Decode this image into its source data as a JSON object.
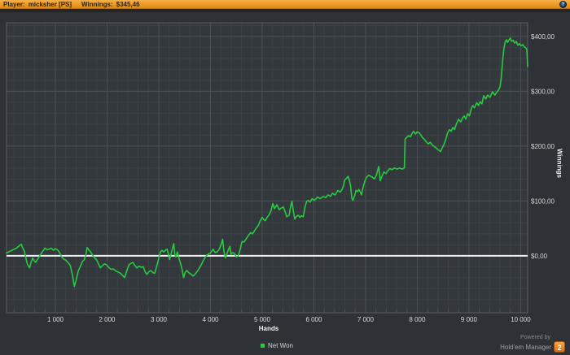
{
  "title_bar": {
    "player_label": "Player:",
    "player_name": "micksher [PS]",
    "winnings_label": "Winnings:",
    "winnings_value": "$345,46",
    "help_icon_glyph": "?"
  },
  "footer": {
    "powered_by": "Powered by",
    "brand": "Hold'em Manager",
    "brand_badge": "2"
  },
  "colors": {
    "titlebar_orange": "#eea62f",
    "outer_bg": "#2e3236",
    "plot_bg": "#33383c",
    "minor_grid": "#3c4146",
    "major_grid": "#4b5156",
    "plot_border": "#565c61",
    "zero_line": "#f2f2f2",
    "net_won_green": "#27cb40",
    "tick_text": "#d6d9db",
    "badge_orange": "#e8821e"
  },
  "chart_data": {
    "type": "line",
    "title": "",
    "xlabel": "Hands",
    "ylabel": "Winnings",
    "grid": true,
    "legend_position": "bottom-center",
    "xlim": [
      55,
      10135
    ],
    "ylim": [
      -104,
      425
    ],
    "x_major_step": 1000,
    "x_minor_step": 200,
    "y_major_step": 100,
    "y_minor_step": 20,
    "zero_line_value": 0,
    "x_ticks": [
      {
        "hands": 1000,
        "label": "1 000"
      },
      {
        "hands": 2000,
        "label": "2 000"
      },
      {
        "hands": 3000,
        "label": "3 000"
      },
      {
        "hands": 4000,
        "label": "4 000"
      },
      {
        "hands": 5000,
        "label": "5 000"
      },
      {
        "hands": 6000,
        "label": "6 000"
      },
      {
        "hands": 7000,
        "label": "7 000"
      },
      {
        "hands": 8000,
        "label": "8 000"
      },
      {
        "hands": 9000,
        "label": "9 000"
      },
      {
        "hands": 10000,
        "label": "10 000"
      }
    ],
    "y_ticks": [
      {
        "value": 400,
        "label": "$400,00"
      },
      {
        "value": 300,
        "label": "$300,00"
      },
      {
        "value": 200,
        "label": "$200,00"
      },
      {
        "value": 100,
        "label": "$100,00"
      },
      {
        "value": 0,
        "label": "$0,00"
      }
    ],
    "series": [
      {
        "name": "Net Won",
        "color": "#27cb40",
        "points": [
          [
            55,
            5
          ],
          [
            120,
            8
          ],
          [
            180,
            11
          ],
          [
            250,
            14
          ],
          [
            310,
            19
          ],
          [
            340,
            21
          ],
          [
            370,
            14
          ],
          [
            400,
            8
          ],
          [
            430,
            -4
          ],
          [
            460,
            -16
          ],
          [
            500,
            -22
          ],
          [
            530,
            -12
          ],
          [
            560,
            -4
          ],
          [
            590,
            -9
          ],
          [
            620,
            -12
          ],
          [
            650,
            -7
          ],
          [
            680,
            -3
          ],
          [
            720,
            3
          ],
          [
            760,
            9
          ],
          [
            800,
            14
          ],
          [
            840,
            11
          ],
          [
            880,
            12
          ],
          [
            920,
            14
          ],
          [
            960,
            10
          ],
          [
            1000,
            13
          ],
          [
            1050,
            10
          ],
          [
            1090,
            4
          ],
          [
            1120,
            -2
          ],
          [
            1160,
            -6
          ],
          [
            1200,
            -8
          ],
          [
            1250,
            -13
          ],
          [
            1290,
            -18
          ],
          [
            1330,
            -35
          ],
          [
            1365,
            -56
          ],
          [
            1400,
            -45
          ],
          [
            1445,
            -27
          ],
          [
            1480,
            -20
          ],
          [
            1520,
            -11
          ],
          [
            1560,
            -7
          ],
          [
            1590,
            2
          ],
          [
            1614,
            15
          ],
          [
            1650,
            10
          ],
          [
            1680,
            7
          ],
          [
            1720,
            1
          ],
          [
            1760,
            -4
          ],
          [
            1800,
            -8
          ],
          [
            1840,
            -16
          ],
          [
            1870,
            -22
          ],
          [
            1910,
            -18
          ],
          [
            1950,
            -15
          ],
          [
            1995,
            -17
          ],
          [
            2040,
            -22
          ],
          [
            2080,
            -25
          ],
          [
            2120,
            -24
          ],
          [
            2170,
            -28
          ],
          [
            2220,
            -30
          ],
          [
            2260,
            -32
          ],
          [
            2300,
            -36
          ],
          [
            2340,
            -40
          ],
          [
            2380,
            -28
          ],
          [
            2420,
            -17
          ],
          [
            2460,
            -14
          ],
          [
            2500,
            -12
          ],
          [
            2540,
            -18
          ],
          [
            2575,
            -22
          ],
          [
            2620,
            -19
          ],
          [
            2660,
            -21
          ],
          [
            2700,
            -20
          ],
          [
            2740,
            -30
          ],
          [
            2770,
            -34
          ],
          [
            2810,
            -29
          ],
          [
            2845,
            -27
          ],
          [
            2890,
            -31
          ],
          [
            2920,
            -32
          ],
          [
            2960,
            -20
          ],
          [
            3000,
            -4
          ],
          [
            3030,
            6
          ],
          [
            3060,
            10
          ],
          [
            3095,
            7
          ],
          [
            3130,
            10
          ],
          [
            3160,
            12
          ],
          [
            3190,
            2
          ],
          [
            3210,
            -7
          ],
          [
            3240,
            4
          ],
          [
            3270,
            15
          ],
          [
            3290,
            22
          ],
          [
            3310,
            2
          ],
          [
            3330,
            -2
          ],
          [
            3360,
            7
          ],
          [
            3390,
            -4
          ],
          [
            3420,
            -14
          ],
          [
            3450,
            -25
          ],
          [
            3480,
            -40
          ],
          [
            3510,
            -30
          ],
          [
            3545,
            -27
          ],
          [
            3580,
            -31
          ],
          [
            3630,
            -34
          ],
          [
            3665,
            -37
          ],
          [
            3700,
            -34
          ],
          [
            3740,
            -29
          ],
          [
            3775,
            -24
          ],
          [
            3820,
            -17
          ],
          [
            3865,
            -8
          ],
          [
            3910,
            -1
          ],
          [
            3955,
            3
          ],
          [
            4000,
            5
          ],
          [
            4050,
            12
          ],
          [
            4090,
            6
          ],
          [
            4130,
            7
          ],
          [
            4170,
            12
          ],
          [
            4215,
            23
          ],
          [
            4235,
            30
          ],
          [
            4260,
            8
          ],
          [
            4290,
            -4
          ],
          [
            4320,
            4
          ],
          [
            4350,
            12
          ],
          [
            4375,
            17
          ],
          [
            4395,
            3
          ],
          [
            4430,
            6
          ],
          [
            4465,
            4
          ],
          [
            4500,
            -2
          ],
          [
            4540,
            0
          ],
          [
            4575,
            12
          ],
          [
            4610,
            26
          ],
          [
            4650,
            25
          ],
          [
            4700,
            32
          ],
          [
            4740,
            38
          ],
          [
            4775,
            42
          ],
          [
            4815,
            40
          ],
          [
            4860,
            47
          ],
          [
            4900,
            52
          ],
          [
            4930,
            56
          ],
          [
            4960,
            63
          ],
          [
            5000,
            70
          ],
          [
            5030,
            66
          ],
          [
            5060,
            64
          ],
          [
            5095,
            70
          ],
          [
            5130,
            74
          ],
          [
            5170,
            82
          ],
          [
            5205,
            95
          ],
          [
            5240,
            86
          ],
          [
            5285,
            93
          ],
          [
            5330,
            84
          ],
          [
            5370,
            87
          ],
          [
            5410,
            89
          ],
          [
            5445,
            80
          ],
          [
            5475,
            71
          ],
          [
            5520,
            74
          ],
          [
            5555,
            92
          ],
          [
            5575,
            99
          ],
          [
            5605,
            80
          ],
          [
            5630,
            67
          ],
          [
            5665,
            72
          ],
          [
            5700,
            74
          ],
          [
            5730,
            70
          ],
          [
            5760,
            73
          ],
          [
            5795,
            71
          ],
          [
            5830,
            90
          ],
          [
            5860,
            99
          ],
          [
            5890,
            101
          ],
          [
            5930,
            98
          ],
          [
            5965,
            104
          ],
          [
            6010,
            101
          ],
          [
            6070,
            107
          ],
          [
            6120,
            104
          ],
          [
            6180,
            108
          ],
          [
            6230,
            106
          ],
          [
            6275,
            111
          ],
          [
            6320,
            108
          ],
          [
            6360,
            114
          ],
          [
            6410,
            111
          ],
          [
            6465,
            119
          ],
          [
            6510,
            116
          ],
          [
            6545,
            121
          ],
          [
            6575,
            129
          ],
          [
            6595,
            138
          ],
          [
            6630,
            141
          ],
          [
            6660,
            145
          ],
          [
            6685,
            138
          ],
          [
            6710,
            128
          ],
          [
            6735,
            105
          ],
          [
            6755,
            101
          ],
          [
            6790,
            110
          ],
          [
            6815,
            119
          ],
          [
            6845,
            117
          ],
          [
            6870,
            121
          ],
          [
            6900,
            115
          ],
          [
            6920,
            111
          ],
          [
            6950,
            124
          ],
          [
            6985,
            136
          ],
          [
            7020,
            143
          ],
          [
            7060,
            147
          ],
          [
            7100,
            145
          ],
          [
            7135,
            143
          ],
          [
            7170,
            140
          ],
          [
            7210,
            147
          ],
          [
            7255,
            163
          ],
          [
            7285,
            137
          ],
          [
            7320,
            146
          ],
          [
            7355,
            153
          ],
          [
            7395,
            150
          ],
          [
            7430,
            155
          ],
          [
            7465,
            159
          ],
          [
            7510,
            157
          ],
          [
            7560,
            160
          ],
          [
            7610,
            158
          ],
          [
            7660,
            160
          ],
          [
            7705,
            158
          ],
          [
            7750,
            160
          ],
          [
            7765,
            213
          ],
          [
            7800,
            216
          ],
          [
            7830,
            219
          ],
          [
            7870,
            217
          ],
          [
            7905,
            224
          ],
          [
            7930,
            227
          ],
          [
            7965,
            222
          ],
          [
            8000,
            226
          ],
          [
            8040,
            224
          ],
          [
            8075,
            219
          ],
          [
            8105,
            215
          ],
          [
            8140,
            212
          ],
          [
            8180,
            207
          ],
          [
            8215,
            204
          ],
          [
            8250,
            207
          ],
          [
            8290,
            202
          ],
          [
            8330,
            199
          ],
          [
            8370,
            196
          ],
          [
            8410,
            193
          ],
          [
            8450,
            190
          ],
          [
            8490,
            198
          ],
          [
            8520,
            204
          ],
          [
            8550,
            212
          ],
          [
            8590,
            225
          ],
          [
            8625,
            230
          ],
          [
            8655,
            227
          ],
          [
            8690,
            234
          ],
          [
            8720,
            230
          ],
          [
            8755,
            240
          ],
          [
            8800,
            249
          ],
          [
            8840,
            244
          ],
          [
            8880,
            252
          ],
          [
            8910,
            255
          ],
          [
            8940,
            249
          ],
          [
            8975,
            259
          ],
          [
            9010,
            255
          ],
          [
            9040,
            267
          ],
          [
            9070,
            274
          ],
          [
            9105,
            270
          ],
          [
            9150,
            279
          ],
          [
            9185,
            274
          ],
          [
            9215,
            281
          ],
          [
            9250,
            277
          ],
          [
            9285,
            292
          ],
          [
            9325,
            286
          ],
          [
            9360,
            293
          ],
          [
            9405,
            289
          ],
          [
            9455,
            299
          ],
          [
            9500,
            293
          ],
          [
            9535,
            298
          ],
          [
            9570,
            302
          ],
          [
            9600,
            308
          ],
          [
            9625,
            325
          ],
          [
            9650,
            355
          ],
          [
            9675,
            378
          ],
          [
            9700,
            390
          ],
          [
            9725,
            394
          ],
          [
            9745,
            389
          ],
          [
            9770,
            393
          ],
          [
            9800,
            397
          ],
          [
            9825,
            391
          ],
          [
            9855,
            393
          ],
          [
            9885,
            388
          ],
          [
            9915,
            391
          ],
          [
            9945,
            384
          ],
          [
            9975,
            387
          ],
          [
            10005,
            383
          ],
          [
            10040,
            385
          ],
          [
            10070,
            381
          ],
          [
            10100,
            379
          ],
          [
            10120,
            376
          ],
          [
            10135,
            345
          ]
        ]
      }
    ]
  }
}
